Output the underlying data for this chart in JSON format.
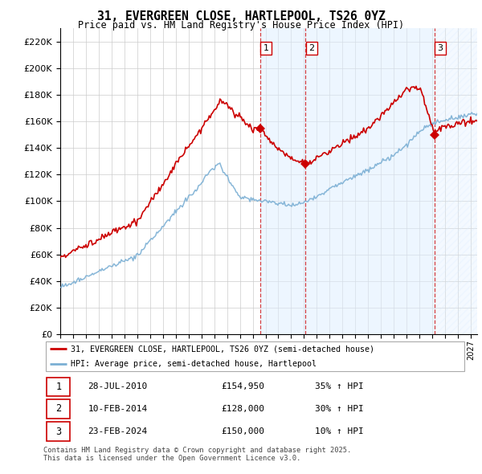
{
  "title": "31, EVERGREEN CLOSE, HARTLEPOOL, TS26 0YZ",
  "subtitle": "Price paid vs. HM Land Registry's House Price Index (HPI)",
  "ylim": [
    0,
    230000
  ],
  "yticks": [
    0,
    20000,
    40000,
    60000,
    80000,
    100000,
    120000,
    140000,
    160000,
    180000,
    200000,
    220000
  ],
  "xlim_start": 1995.0,
  "xlim_end": 2027.5,
  "red_color": "#cc0000",
  "blue_color": "#7bafd4",
  "shade_color": "#ddeeff",
  "transactions": [
    {
      "num": 1,
      "date_x": 2010.57,
      "price": 154950,
      "label": "28-JUL-2010",
      "price_str": "£154,950",
      "hpi_str": "35% ↑ HPI"
    },
    {
      "num": 2,
      "date_x": 2014.11,
      "price": 128000,
      "label": "10-FEB-2014",
      "price_str": "£128,000",
      "hpi_str": "30% ↑ HPI"
    },
    {
      "num": 3,
      "date_x": 2024.15,
      "price": 150000,
      "label": "23-FEB-2024",
      "price_str": "£150,000",
      "hpi_str": "10% ↑ HPI"
    }
  ],
  "legend_label_red": "31, EVERGREEN CLOSE, HARTLEPOOL, TS26 0YZ (semi-detached house)",
  "legend_label_blue": "HPI: Average price, semi-detached house, Hartlepool",
  "footer": "Contains HM Land Registry data © Crown copyright and database right 2025.\nThis data is licensed under the Open Government Licence v3.0.",
  "background_color": "#ffffff",
  "grid_color": "#cccccc"
}
